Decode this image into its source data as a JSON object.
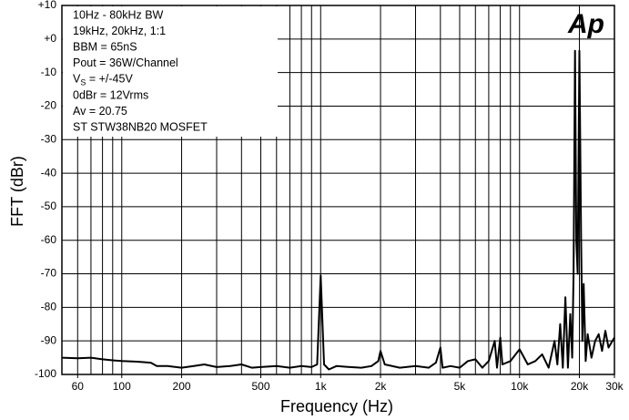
{
  "chart_data": {
    "type": "line",
    "xlabel": "Frequency (Hz)",
    "ylabel": "FFT (dBr)",
    "logo": "Ap",
    "annotations": [
      "10Hz - 80kHz BW",
      "19kHz, 20kHz, 1:1",
      "BBM = 65nS",
      "Pout = 36W/Channel",
      {
        "main": "V",
        "sub": "S",
        "rest": " = +/-45V"
      },
      "0dBr = 12Vrms",
      "Av = 20.75",
      "ST STW38NB20 MOSFET"
    ],
    "xlog": true,
    "grid": true,
    "color": "#000000",
    "xlim": [
      50,
      30000
    ],
    "ylim": [
      -100,
      10
    ],
    "xticks": [
      60,
      100,
      200,
      500,
      {
        "value": 1000,
        "label": "1k"
      },
      {
        "value": 2000,
        "label": "2k"
      },
      {
        "value": 5000,
        "label": "5k"
      },
      {
        "value": 10000,
        "label": "10k"
      },
      {
        "value": 20000,
        "label": "20k"
      },
      {
        "value": 30000,
        "label": "30k"
      }
    ],
    "xgrid": [
      60,
      70,
      80,
      90,
      100,
      200,
      300,
      400,
      500,
      600,
      700,
      800,
      900,
      1000,
      2000,
      3000,
      4000,
      5000,
      6000,
      7000,
      8000,
      9000,
      10000,
      20000,
      30000
    ],
    "yticks": [
      {
        "value": 10,
        "label": "+10"
      },
      {
        "value": 0,
        "label": "+0"
      },
      -10,
      -20,
      -30,
      -40,
      -50,
      -60,
      -70,
      -80,
      -90,
      -100
    ],
    "x": [
      50,
      60,
      70,
      80,
      90,
      100,
      120,
      140,
      150,
      170,
      200,
      230,
      260,
      300,
      350,
      400,
      450,
      500,
      600,
      700,
      800,
      900,
      960,
      1000,
      1040,
      1100,
      1200,
      1400,
      1600,
      1800,
      1950,
      2000,
      2100,
      2500,
      3000,
      3500,
      3800,
      4000,
      4100,
      4500,
      5000,
      5500,
      6000,
      6500,
      7000,
      7500,
      7700,
      8000,
      8200,
      9000,
      10000,
      11000,
      12000,
      13000,
      14000,
      15000,
      15500,
      16000,
      16500,
      17000,
      17500,
      18000,
      18400,
      18700,
      19000,
      19300,
      19600,
      20000,
      20400,
      20700,
      21000,
      21500,
      22000,
      23000,
      24000,
      25000,
      26000,
      27000,
      28000,
      30000
    ],
    "values": [
      -95,
      -95.2,
      -95,
      -95.5,
      -95.8,
      -96,
      -96.2,
      -96.5,
      -97.5,
      -97.5,
      -98,
      -97.5,
      -97,
      -97.8,
      -97.5,
      -97,
      -98,
      -97.8,
      -97.5,
      -98,
      -97.5,
      -97.8,
      -97,
      -70.5,
      -97,
      -98.5,
      -97.5,
      -97.8,
      -98,
      -97.5,
      -96,
      -93,
      -97,
      -98,
      -97.5,
      -98,
      -96.5,
      -92,
      -98,
      -97.5,
      -98,
      -96,
      -95.5,
      -98,
      -96,
      -90,
      -98,
      -89,
      -97,
      -96,
      -92.5,
      -97,
      -96,
      -94,
      -98,
      -90,
      -97,
      -85,
      -98,
      -77,
      -98,
      -82,
      -95,
      -70,
      -3.5,
      -60,
      -70,
      -3.5,
      -60,
      -90,
      -73,
      -96,
      -88,
      -95,
      -90,
      -88,
      -93,
      -87,
      -92,
      -89
    ]
  }
}
